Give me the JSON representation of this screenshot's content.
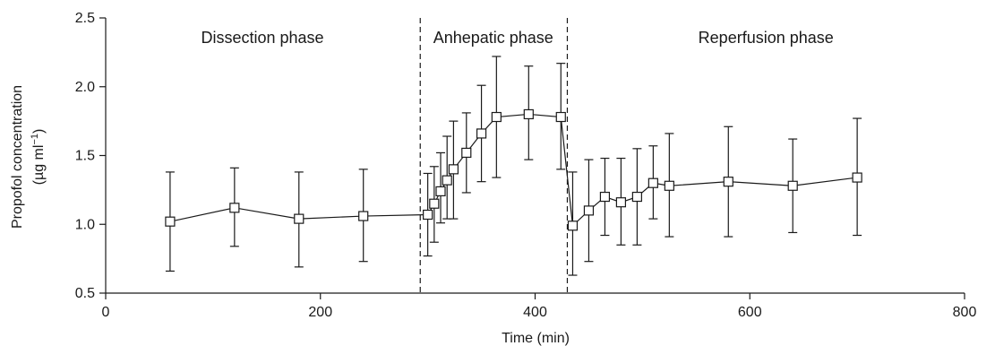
{
  "chart_data": {
    "type": "line",
    "title": "",
    "xlabel": "Time (min)",
    "ylabel_line1": "Propofol concentration",
    "ylabel_line2": "(µg ml",
    "ylabel_sup": "−1",
    "ylabel_close": ")",
    "xlim": [
      0,
      800
    ],
    "ylim": [
      0.5,
      2.5
    ],
    "xticks": [
      0,
      200,
      400,
      600,
      800
    ],
    "yticks": [
      0.5,
      1.0,
      1.5,
      2.0,
      2.5
    ],
    "ytick_labels": [
      "0.5",
      "1.0",
      "1.5",
      "2.0",
      "2.5"
    ],
    "grid": false,
    "line_color": "#1a1a1a",
    "marker": "open-square",
    "phase_boundaries": [
      293,
      430
    ],
    "phases": [
      {
        "label": "Dissection phase",
        "x_center": 146
      },
      {
        "label": "Anhepatic phase",
        "x_center": 361
      },
      {
        "label": "Reperfusion phase",
        "x_center": 615
      }
    ],
    "series": [
      {
        "points": [
          {
            "x": 60,
            "y": 1.02,
            "lo": 0.66,
            "hi": 1.38
          },
          {
            "x": 120,
            "y": 1.12,
            "lo": 0.84,
            "hi": 1.41
          },
          {
            "x": 180,
            "y": 1.04,
            "lo": 0.69,
            "hi": 1.38
          },
          {
            "x": 240,
            "y": 1.06,
            "lo": 0.73,
            "hi": 1.4
          },
          {
            "x": 300,
            "y": 1.07,
            "lo": 0.77,
            "hi": 1.37
          },
          {
            "x": 306,
            "y": 1.15,
            "lo": 0.87,
            "hi": 1.42
          },
          {
            "x": 312,
            "y": 1.24,
            "lo": 1.01,
            "hi": 1.52
          },
          {
            "x": 318,
            "y": 1.32,
            "lo": 1.04,
            "hi": 1.64
          },
          {
            "x": 324,
            "y": 1.4,
            "lo": 1.04,
            "hi": 1.75
          },
          {
            "x": 336,
            "y": 1.52,
            "lo": 1.23,
            "hi": 1.81
          },
          {
            "x": 350,
            "y": 1.66,
            "lo": 1.31,
            "hi": 2.01
          },
          {
            "x": 364,
            "y": 1.78,
            "lo": 1.34,
            "hi": 2.22
          },
          {
            "x": 394,
            "y": 1.8,
            "lo": 1.47,
            "hi": 2.15
          },
          {
            "x": 424,
            "y": 1.78,
            "lo": 1.4,
            "hi": 2.17
          },
          {
            "x": 435,
            "y": 0.99,
            "lo": 0.63,
            "hi": 1.38
          },
          {
            "x": 450,
            "y": 1.1,
            "lo": 0.73,
            "hi": 1.47
          },
          {
            "x": 465,
            "y": 1.2,
            "lo": 0.92,
            "hi": 1.48
          },
          {
            "x": 480,
            "y": 1.16,
            "lo": 0.85,
            "hi": 1.48
          },
          {
            "x": 495,
            "y": 1.2,
            "lo": 0.85,
            "hi": 1.55
          },
          {
            "x": 510,
            "y": 1.3,
            "lo": 1.04,
            "hi": 1.57
          },
          {
            "x": 525,
            "y": 1.28,
            "lo": 0.91,
            "hi": 1.66
          },
          {
            "x": 580,
            "y": 1.31,
            "lo": 0.91,
            "hi": 1.71
          },
          {
            "x": 640,
            "y": 1.28,
            "lo": 0.94,
            "hi": 1.62
          },
          {
            "x": 700,
            "y": 1.34,
            "lo": 0.92,
            "hi": 1.77
          }
        ]
      }
    ]
  }
}
